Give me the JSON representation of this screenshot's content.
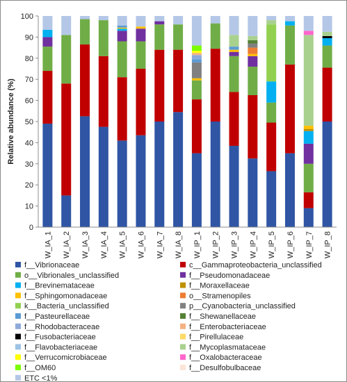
{
  "chart_data": {
    "type": "bar",
    "stacked": true,
    "title": "",
    "xlabel": "",
    "ylabel": "Relative abundance (%)",
    "ylim": [
      0,
      100
    ],
    "yticks": [
      0,
      10,
      20,
      30,
      40,
      50,
      60,
      70,
      80,
      90,
      100
    ],
    "grid": false,
    "legend_position": "bottom",
    "categories": [
      "W_IA_1",
      "W_IA_2",
      "W_IA_3",
      "W_IA_4",
      "W_IA_5",
      "W_IA_6",
      "W_IA_7",
      "W_IA_8",
      "W_IP_1",
      "W_IP_2",
      "W_IP_3",
      "W_IP_4",
      "W_IP_5",
      "W_IP_6",
      "W_IP_7",
      "W_IP_8"
    ],
    "series": [
      {
        "name": "f__Vibrionaceae",
        "color": "#2f55a4",
        "values": [
          49,
          15,
          52.5,
          47.5,
          41,
          43.5,
          50,
          54.5,
          35,
          50,
          38.5,
          32.5,
          26.5,
          35,
          9,
          50
        ]
      },
      {
        "name": "c__Gammaproteobacteria_unclassified",
        "color": "#c00000",
        "values": [
          25,
          53,
          34,
          33.5,
          30,
          31.5,
          34,
          29.5,
          25.5,
          34.5,
          25.5,
          30,
          23,
          42,
          7.5,
          25.5
        ]
      },
      {
        "name": "o__Vibrionales_unclassified",
        "color": "#70ad47",
        "values": [
          11.5,
          23,
          12,
          17,
          17,
          13,
          12,
          12,
          9,
          12,
          17,
          13.5,
          9.5,
          18.5,
          13.5,
          10.5
        ]
      },
      {
        "name": "f__Pseudomonadaceae",
        "color": "#7030a0",
        "values": [
          4.5,
          0,
          0,
          0,
          5,
          6,
          1.5,
          0,
          0,
          0,
          2,
          5,
          0,
          0,
          9.5,
          0
        ]
      },
      {
        "name": "f__Brevinemataceae",
        "color": "#00b0f0",
        "values": [
          3.5,
          0,
          0,
          0,
          1,
          0,
          0,
          0,
          0,
          0,
          0,
          0,
          10,
          2,
          6,
          3.5
        ]
      },
      {
        "name": "f__Moraxellaceae",
        "color": "#bf9000",
        "values": [
          0,
          0,
          0,
          0,
          0,
          0,
          0,
          0,
          0,
          0,
          0,
          0,
          0,
          0,
          1,
          0
        ]
      },
      {
        "name": "f__Sphingomonadaceae",
        "color": "#ffc000",
        "values": [
          0,
          0,
          0,
          0,
          0.5,
          1,
          0,
          0,
          1,
          0,
          1,
          1,
          0,
          0,
          1.5,
          0
        ]
      },
      {
        "name": "o__Stramenopiles",
        "color": "#ed7d31",
        "values": [
          0,
          0,
          0,
          0,
          0,
          0,
          0,
          0,
          0,
          0,
          0,
          3,
          0,
          0,
          0,
          0
        ]
      },
      {
        "name": "k__Bacteria_unclassified",
        "color": "#92d050",
        "values": [
          0,
          0,
          0,
          0,
          0,
          0,
          0,
          0,
          0,
          0,
          0,
          0,
          27,
          0,
          0,
          0
        ]
      },
      {
        "name": "p__Cyanobacteria_unclassified",
        "color": "#808080",
        "values": [
          0,
          0,
          0,
          0,
          0,
          0,
          0,
          0,
          7.5,
          0,
          0,
          2,
          0,
          0,
          0,
          0
        ]
      },
      {
        "name": "f__Pasteurellaceae",
        "color": "#5b9bd5",
        "values": [
          0,
          0,
          0,
          0,
          1,
          0,
          0,
          0,
          1.5,
          0,
          1.5,
          0,
          0,
          0,
          0,
          0
        ]
      },
      {
        "name": "f__Shewanellaceae",
        "color": "#548235",
        "values": [
          0,
          0,
          0,
          0,
          0,
          0,
          0,
          0,
          0,
          0,
          0,
          1.5,
          0,
          0,
          0,
          0
        ]
      },
      {
        "name": "f__Rhodobacteraceae",
        "color": "#8eaadb",
        "values": [
          0,
          0,
          0,
          0,
          0,
          0,
          0,
          0,
          2,
          0,
          0,
          0,
          0,
          0,
          0,
          0
        ]
      },
      {
        "name": "f__Enterobacteriaceae",
        "color": "#f4b183",
        "values": [
          0,
          0,
          0,
          0,
          0,
          0,
          0,
          0,
          1,
          0,
          0,
          0,
          0,
          0,
          0,
          0
        ]
      },
      {
        "name": "f__Fusobacteriaceae",
        "color": "#000000",
        "values": [
          0,
          0,
          0,
          0,
          0,
          0,
          0,
          0,
          0,
          0,
          0,
          0,
          0,
          0,
          0,
          1
        ]
      },
      {
        "name": "f__Pirellulaceae",
        "color": "#ffd966",
        "values": [
          0,
          0,
          0,
          0,
          0,
          0,
          0,
          0,
          0,
          0,
          0,
          0,
          0,
          0,
          0,
          0
        ]
      },
      {
        "name": "f__Flavobacteriaceae",
        "color": "#9dc3e6",
        "values": [
          0,
          0,
          0,
          0,
          0,
          0,
          0,
          0,
          0,
          0,
          0,
          0,
          0,
          0,
          0,
          0
        ]
      },
      {
        "name": "f__Mycoplasmataceae",
        "color": "#a9d18e",
        "values": [
          0,
          0,
          0,
          0,
          0,
          0,
          0,
          0,
          0,
          0,
          5.5,
          2,
          2,
          0,
          43,
          2
        ]
      },
      {
        "name": "f__Verrucomicrobiaceae",
        "color": "#ffff00",
        "values": [
          0,
          0,
          0,
          0,
          0,
          0,
          0,
          0,
          1,
          0,
          0,
          0,
          0,
          0,
          0,
          0
        ]
      },
      {
        "name": "f__Oxalobacteraceae",
        "color": "#ff66cc",
        "values": [
          0,
          0,
          0,
          0,
          0,
          0,
          0,
          0,
          0,
          0,
          0,
          0,
          0,
          0,
          2,
          0
        ]
      },
      {
        "name": "f__OM60",
        "color": "#7cfc00",
        "values": [
          0,
          0,
          0,
          0,
          0,
          0,
          0,
          0,
          2.5,
          0,
          0,
          0,
          0,
          0,
          0,
          0
        ]
      },
      {
        "name": "f__Desulfobulbaceae",
        "color": "#fbe5d6",
        "values": [
          0,
          0,
          0,
          0,
          0,
          0,
          0,
          0,
          0,
          0,
          0,
          0,
          0,
          0,
          0,
          0
        ]
      },
      {
        "name": "ETC <1%",
        "color": "#b4c7e7",
        "values": [
          6.5,
          9,
          1.5,
          2,
          4.5,
          5,
          2.5,
          4,
          14,
          3.5,
          9,
          9.5,
          2,
          2.5,
          7,
          7.5
        ]
      }
    ]
  }
}
